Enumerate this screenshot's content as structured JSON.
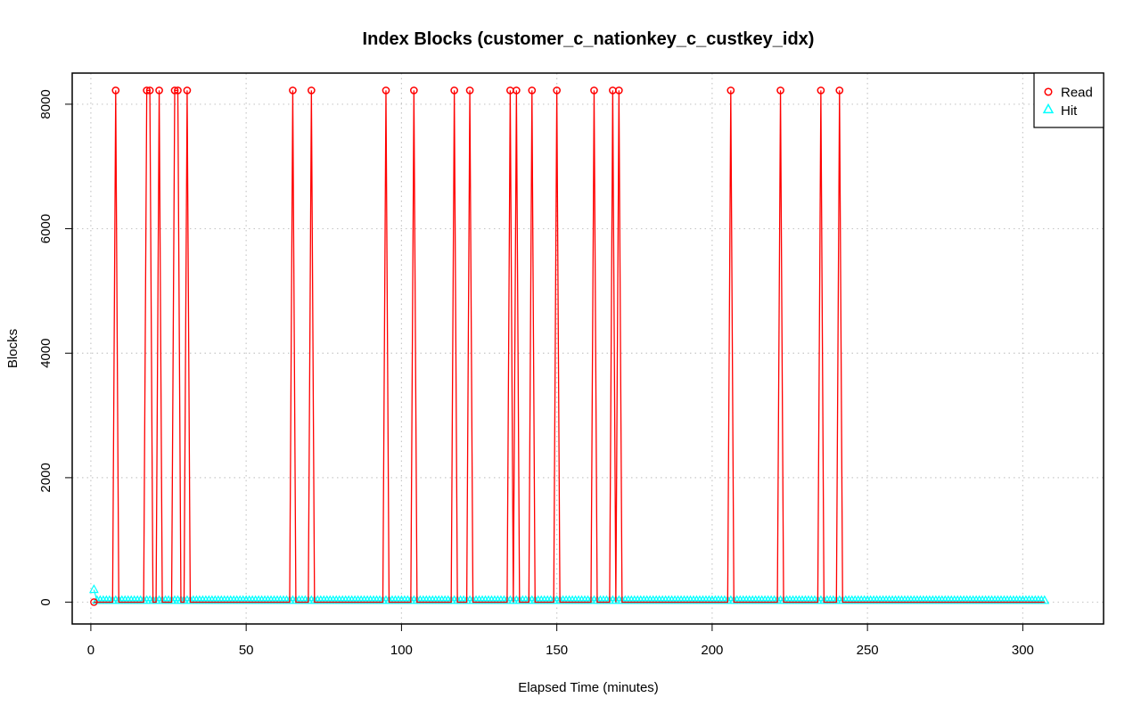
{
  "chart_data": {
    "type": "line",
    "title": "Index Blocks (customer_c_nationkey_c_custkey_idx)",
    "xlabel": "Elapsed Time (minutes)",
    "ylabel": "Blocks",
    "xlim": [
      -6,
      326
    ],
    "ylim": [
      -350,
      8500
    ],
    "x_ticks": [
      0,
      50,
      100,
      150,
      200,
      250,
      300
    ],
    "y_ticks": [
      0,
      2000,
      4000,
      6000,
      8000
    ],
    "grid": true,
    "legend_position": "top-right",
    "x_range": [
      1,
      307
    ],
    "series": [
      {
        "name": "Read",
        "color": "#ff0000",
        "marker": "circle",
        "baseline": 0,
        "peak_value": 8222,
        "peak_x": [
          8,
          18,
          19,
          22,
          27,
          28,
          31,
          65,
          71,
          95,
          104,
          117,
          122,
          135,
          137,
          142,
          150,
          162,
          168,
          170,
          206,
          222,
          235,
          241
        ]
      },
      {
        "name": "Hit",
        "color": "#00ffff",
        "marker": "triangle",
        "baseline": 24,
        "first_point": [
          1,
          200
        ]
      }
    ]
  }
}
